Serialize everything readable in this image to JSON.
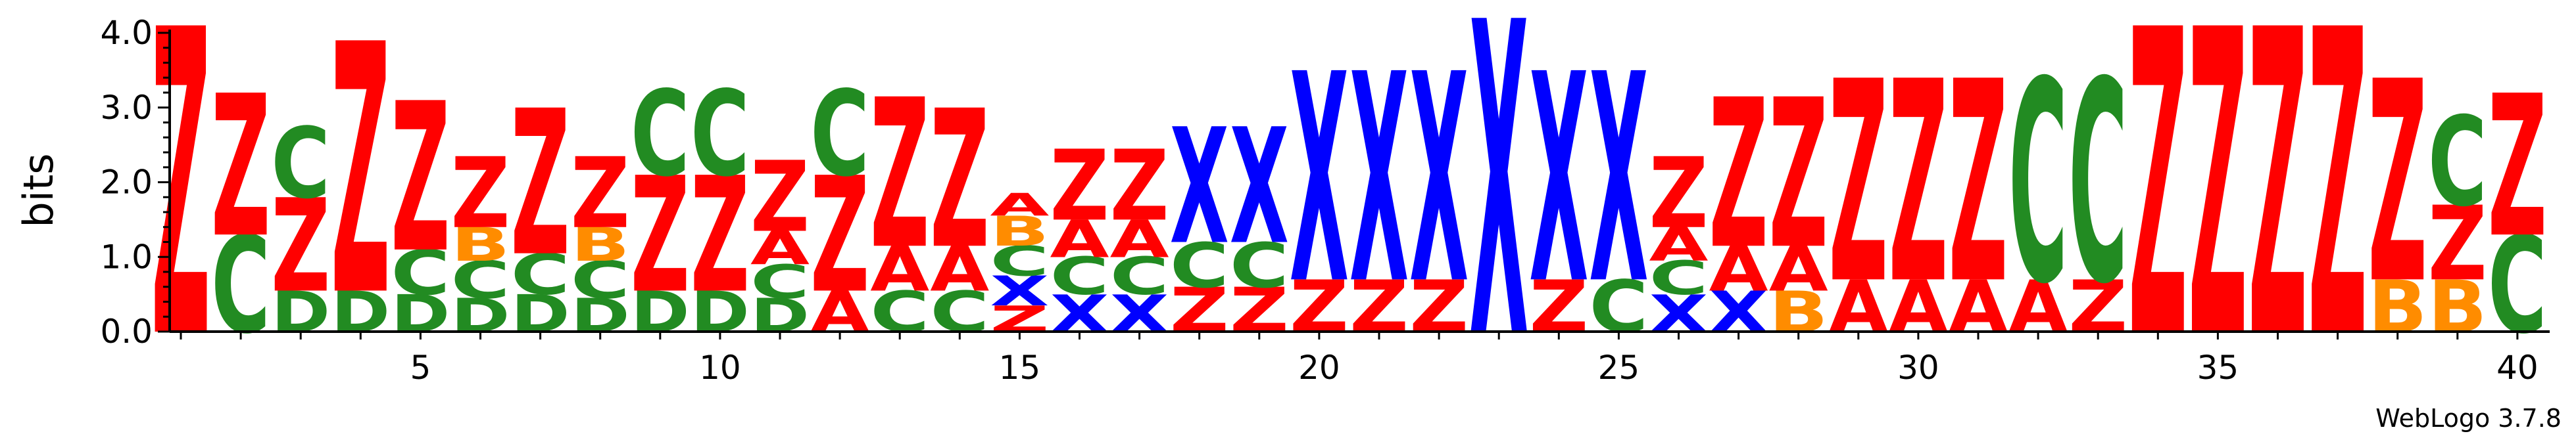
{
  "chart_data": {
    "type": "sequence-logo",
    "ylabel": "bits",
    "ylim": [
      0,
      4.0
    ],
    "ytick_labels": [
      "0.0",
      "1.0",
      "2.0",
      "3.0",
      "4.0"
    ],
    "xtick_labels": [
      "5",
      "10",
      "15",
      "20",
      "25",
      "30",
      "35",
      "40"
    ],
    "xtick_positions": [
      5,
      10,
      15,
      20,
      25,
      30,
      35,
      40
    ],
    "credit": "WebLogo 3.7.8",
    "colors": {
      "Z": "#ff0000",
      "C": "#228b22",
      "D": "#228b22",
      "B": "#ff8c00",
      "A": "#ff0000",
      "X": "#0000ff"
    },
    "positions": [
      {
        "pos": 1,
        "stack": [
          {
            "l": "Z",
            "h": 4.1
          }
        ]
      },
      {
        "pos": 2,
        "stack": [
          {
            "l": "C",
            "h": 1.3
          },
          {
            "l": "Z",
            "h": 1.9
          }
        ]
      },
      {
        "pos": 3,
        "stack": [
          {
            "l": "D",
            "h": 0.55
          },
          {
            "l": "Z",
            "h": 1.25
          },
          {
            "l": "C",
            "h": 0.95
          }
        ]
      },
      {
        "pos": 4,
        "stack": [
          {
            "l": "D",
            "h": 0.55
          },
          {
            "l": "Z",
            "h": 3.35
          }
        ]
      },
      {
        "pos": 5,
        "stack": [
          {
            "l": "D",
            "h": 0.5
          },
          {
            "l": "C",
            "h": 0.6
          },
          {
            "l": "Z",
            "h": 2.0
          }
        ]
      },
      {
        "pos": 6,
        "stack": [
          {
            "l": "D",
            "h": 0.45
          },
          {
            "l": "C",
            "h": 0.5
          },
          {
            "l": "B",
            "h": 0.45
          },
          {
            "l": "Z",
            "h": 0.95
          }
        ]
      },
      {
        "pos": 7,
        "stack": [
          {
            "l": "D",
            "h": 0.5
          },
          {
            "l": "C",
            "h": 0.55
          },
          {
            "l": "Z",
            "h": 1.95
          }
        ]
      },
      {
        "pos": 8,
        "stack": [
          {
            "l": "D",
            "h": 0.45
          },
          {
            "l": "C",
            "h": 0.5
          },
          {
            "l": "B",
            "h": 0.45
          },
          {
            "l": "Z",
            "h": 0.95
          }
        ]
      },
      {
        "pos": 9,
        "stack": [
          {
            "l": "D",
            "h": 0.55
          },
          {
            "l": "Z",
            "h": 1.55
          },
          {
            "l": "C",
            "h": 1.15
          }
        ]
      },
      {
        "pos": 10,
        "stack": [
          {
            "l": "D",
            "h": 0.55
          },
          {
            "l": "Z",
            "h": 1.55
          },
          {
            "l": "C",
            "h": 1.15
          }
        ]
      },
      {
        "pos": 11,
        "stack": [
          {
            "l": "D",
            "h": 0.45
          },
          {
            "l": "C",
            "h": 0.45
          },
          {
            "l": "A",
            "h": 0.45
          },
          {
            "l": "Z",
            "h": 0.95
          }
        ]
      },
      {
        "pos": 12,
        "stack": [
          {
            "l": "A",
            "h": 0.55
          },
          {
            "l": "Z",
            "h": 1.55
          },
          {
            "l": "C",
            "h": 1.15
          }
        ]
      },
      {
        "pos": 13,
        "stack": [
          {
            "l": "C",
            "h": 0.55
          },
          {
            "l": "A",
            "h": 0.6
          },
          {
            "l": "Z",
            "h": 2.0
          }
        ]
      },
      {
        "pos": 14,
        "stack": [
          {
            "l": "C",
            "h": 0.55
          },
          {
            "l": "A",
            "h": 0.6
          },
          {
            "l": "Z",
            "h": 1.85
          }
        ]
      },
      {
        "pos": 15,
        "stack": [
          {
            "l": "Z",
            "h": 0.35
          },
          {
            "l": "X",
            "h": 0.4
          },
          {
            "l": "C",
            "h": 0.4
          },
          {
            "l": "B",
            "h": 0.4
          },
          {
            "l": "A",
            "h": 0.3
          }
        ]
      },
      {
        "pos": 16,
        "stack": [
          {
            "l": "X",
            "h": 0.5
          },
          {
            "l": "C",
            "h": 0.5
          },
          {
            "l": "A",
            "h": 0.5
          },
          {
            "l": "Z",
            "h": 0.95
          }
        ]
      },
      {
        "pos": 17,
        "stack": [
          {
            "l": "X",
            "h": 0.5
          },
          {
            "l": "C",
            "h": 0.5
          },
          {
            "l": "A",
            "h": 0.5
          },
          {
            "l": "Z",
            "h": 0.95
          }
        ]
      },
      {
        "pos": 18,
        "stack": [
          {
            "l": "Z",
            "h": 0.6
          },
          {
            "l": "C",
            "h": 0.6
          },
          {
            "l": "X",
            "h": 1.55
          }
        ]
      },
      {
        "pos": 19,
        "stack": [
          {
            "l": "Z",
            "h": 0.6
          },
          {
            "l": "C",
            "h": 0.6
          },
          {
            "l": "X",
            "h": 1.55
          }
        ]
      },
      {
        "pos": 20,
        "stack": [
          {
            "l": "Z",
            "h": 0.7
          },
          {
            "l": "X",
            "h": 2.8
          }
        ]
      },
      {
        "pos": 21,
        "stack": [
          {
            "l": "Z",
            "h": 0.7
          },
          {
            "l": "X",
            "h": 2.8
          }
        ]
      },
      {
        "pos": 22,
        "stack": [
          {
            "l": "Z",
            "h": 0.7
          },
          {
            "l": "X",
            "h": 2.8
          }
        ]
      },
      {
        "pos": 23,
        "stack": [
          {
            "l": "X",
            "h": 4.2
          }
        ]
      },
      {
        "pos": 24,
        "stack": [
          {
            "l": "Z",
            "h": 0.7
          },
          {
            "l": "X",
            "h": 2.8
          }
        ]
      },
      {
        "pos": 25,
        "stack": [
          {
            "l": "C",
            "h": 0.7
          },
          {
            "l": "X",
            "h": 2.8
          }
        ]
      },
      {
        "pos": 26,
        "stack": [
          {
            "l": "X",
            "h": 0.5
          },
          {
            "l": "C",
            "h": 0.45
          },
          {
            "l": "A",
            "h": 0.45
          },
          {
            "l": "Z",
            "h": 0.95
          }
        ]
      },
      {
        "pos": 27,
        "stack": [
          {
            "l": "X",
            "h": 0.55
          },
          {
            "l": "A",
            "h": 0.6
          },
          {
            "l": "Z",
            "h": 2.0
          }
        ]
      },
      {
        "pos": 28,
        "stack": [
          {
            "l": "B",
            "h": 0.55
          },
          {
            "l": "A",
            "h": 0.6
          },
          {
            "l": "Z",
            "h": 2.0
          }
        ]
      },
      {
        "pos": 29,
        "stack": [
          {
            "l": "A",
            "h": 0.7
          },
          {
            "l": "Z",
            "h": 2.7
          }
        ]
      },
      {
        "pos": 30,
        "stack": [
          {
            "l": "A",
            "h": 0.7
          },
          {
            "l": "Z",
            "h": 2.7
          }
        ]
      },
      {
        "pos": 31,
        "stack": [
          {
            "l": "A",
            "h": 0.7
          },
          {
            "l": "Z",
            "h": 2.7
          }
        ]
      },
      {
        "pos": 32,
        "stack": [
          {
            "l": "A",
            "h": 0.7
          },
          {
            "l": "C",
            "h": 2.7
          }
        ]
      },
      {
        "pos": 33,
        "stack": [
          {
            "l": "Z",
            "h": 0.7
          },
          {
            "l": "C",
            "h": 2.7
          }
        ]
      },
      {
        "pos": 34,
        "stack": [
          {
            "l": "Z",
            "h": 4.1
          }
        ]
      },
      {
        "pos": 35,
        "stack": [
          {
            "l": "Z",
            "h": 4.1
          }
        ]
      },
      {
        "pos": 36,
        "stack": [
          {
            "l": "Z",
            "h": 4.1
          }
        ]
      },
      {
        "pos": 37,
        "stack": [
          {
            "l": "Z",
            "h": 4.1
          }
        ]
      },
      {
        "pos": 38,
        "stack": [
          {
            "l": "B",
            "h": 0.7
          },
          {
            "l": "Z",
            "h": 2.7
          }
        ]
      },
      {
        "pos": 39,
        "stack": [
          {
            "l": "B",
            "h": 0.7
          },
          {
            "l": "Z",
            "h": 1.0
          },
          {
            "l": "C",
            "h": 1.2
          }
        ]
      },
      {
        "pos": 40,
        "stack": [
          {
            "l": "C",
            "h": 1.3
          },
          {
            "l": "Z",
            "h": 1.9
          }
        ]
      }
    ]
  }
}
